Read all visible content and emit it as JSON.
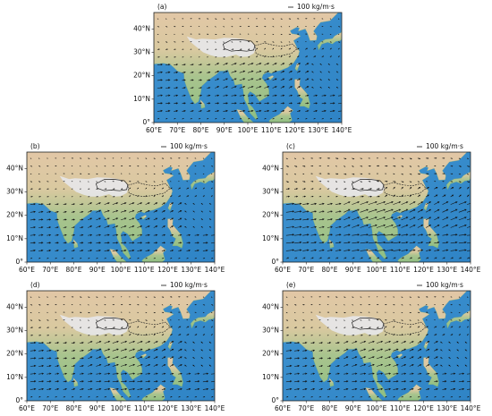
{
  "panels": [
    {
      "label": "(a)"
    },
    {
      "label": "(b)"
    },
    {
      "label": "(c)"
    },
    {
      "label": "(d)"
    },
    {
      "label": "(e)"
    }
  ],
  "scale_label": "100 kg/m·s",
  "x_ticks": [
    "60°E",
    "70°E",
    "80°E",
    "90°E",
    "100°E",
    "110°E",
    "120°E",
    "130°E",
    "140°E"
  ],
  "y_ticks": [
    "0°",
    "10°N",
    "20°N",
    "30°N",
    "40°N"
  ]
}
